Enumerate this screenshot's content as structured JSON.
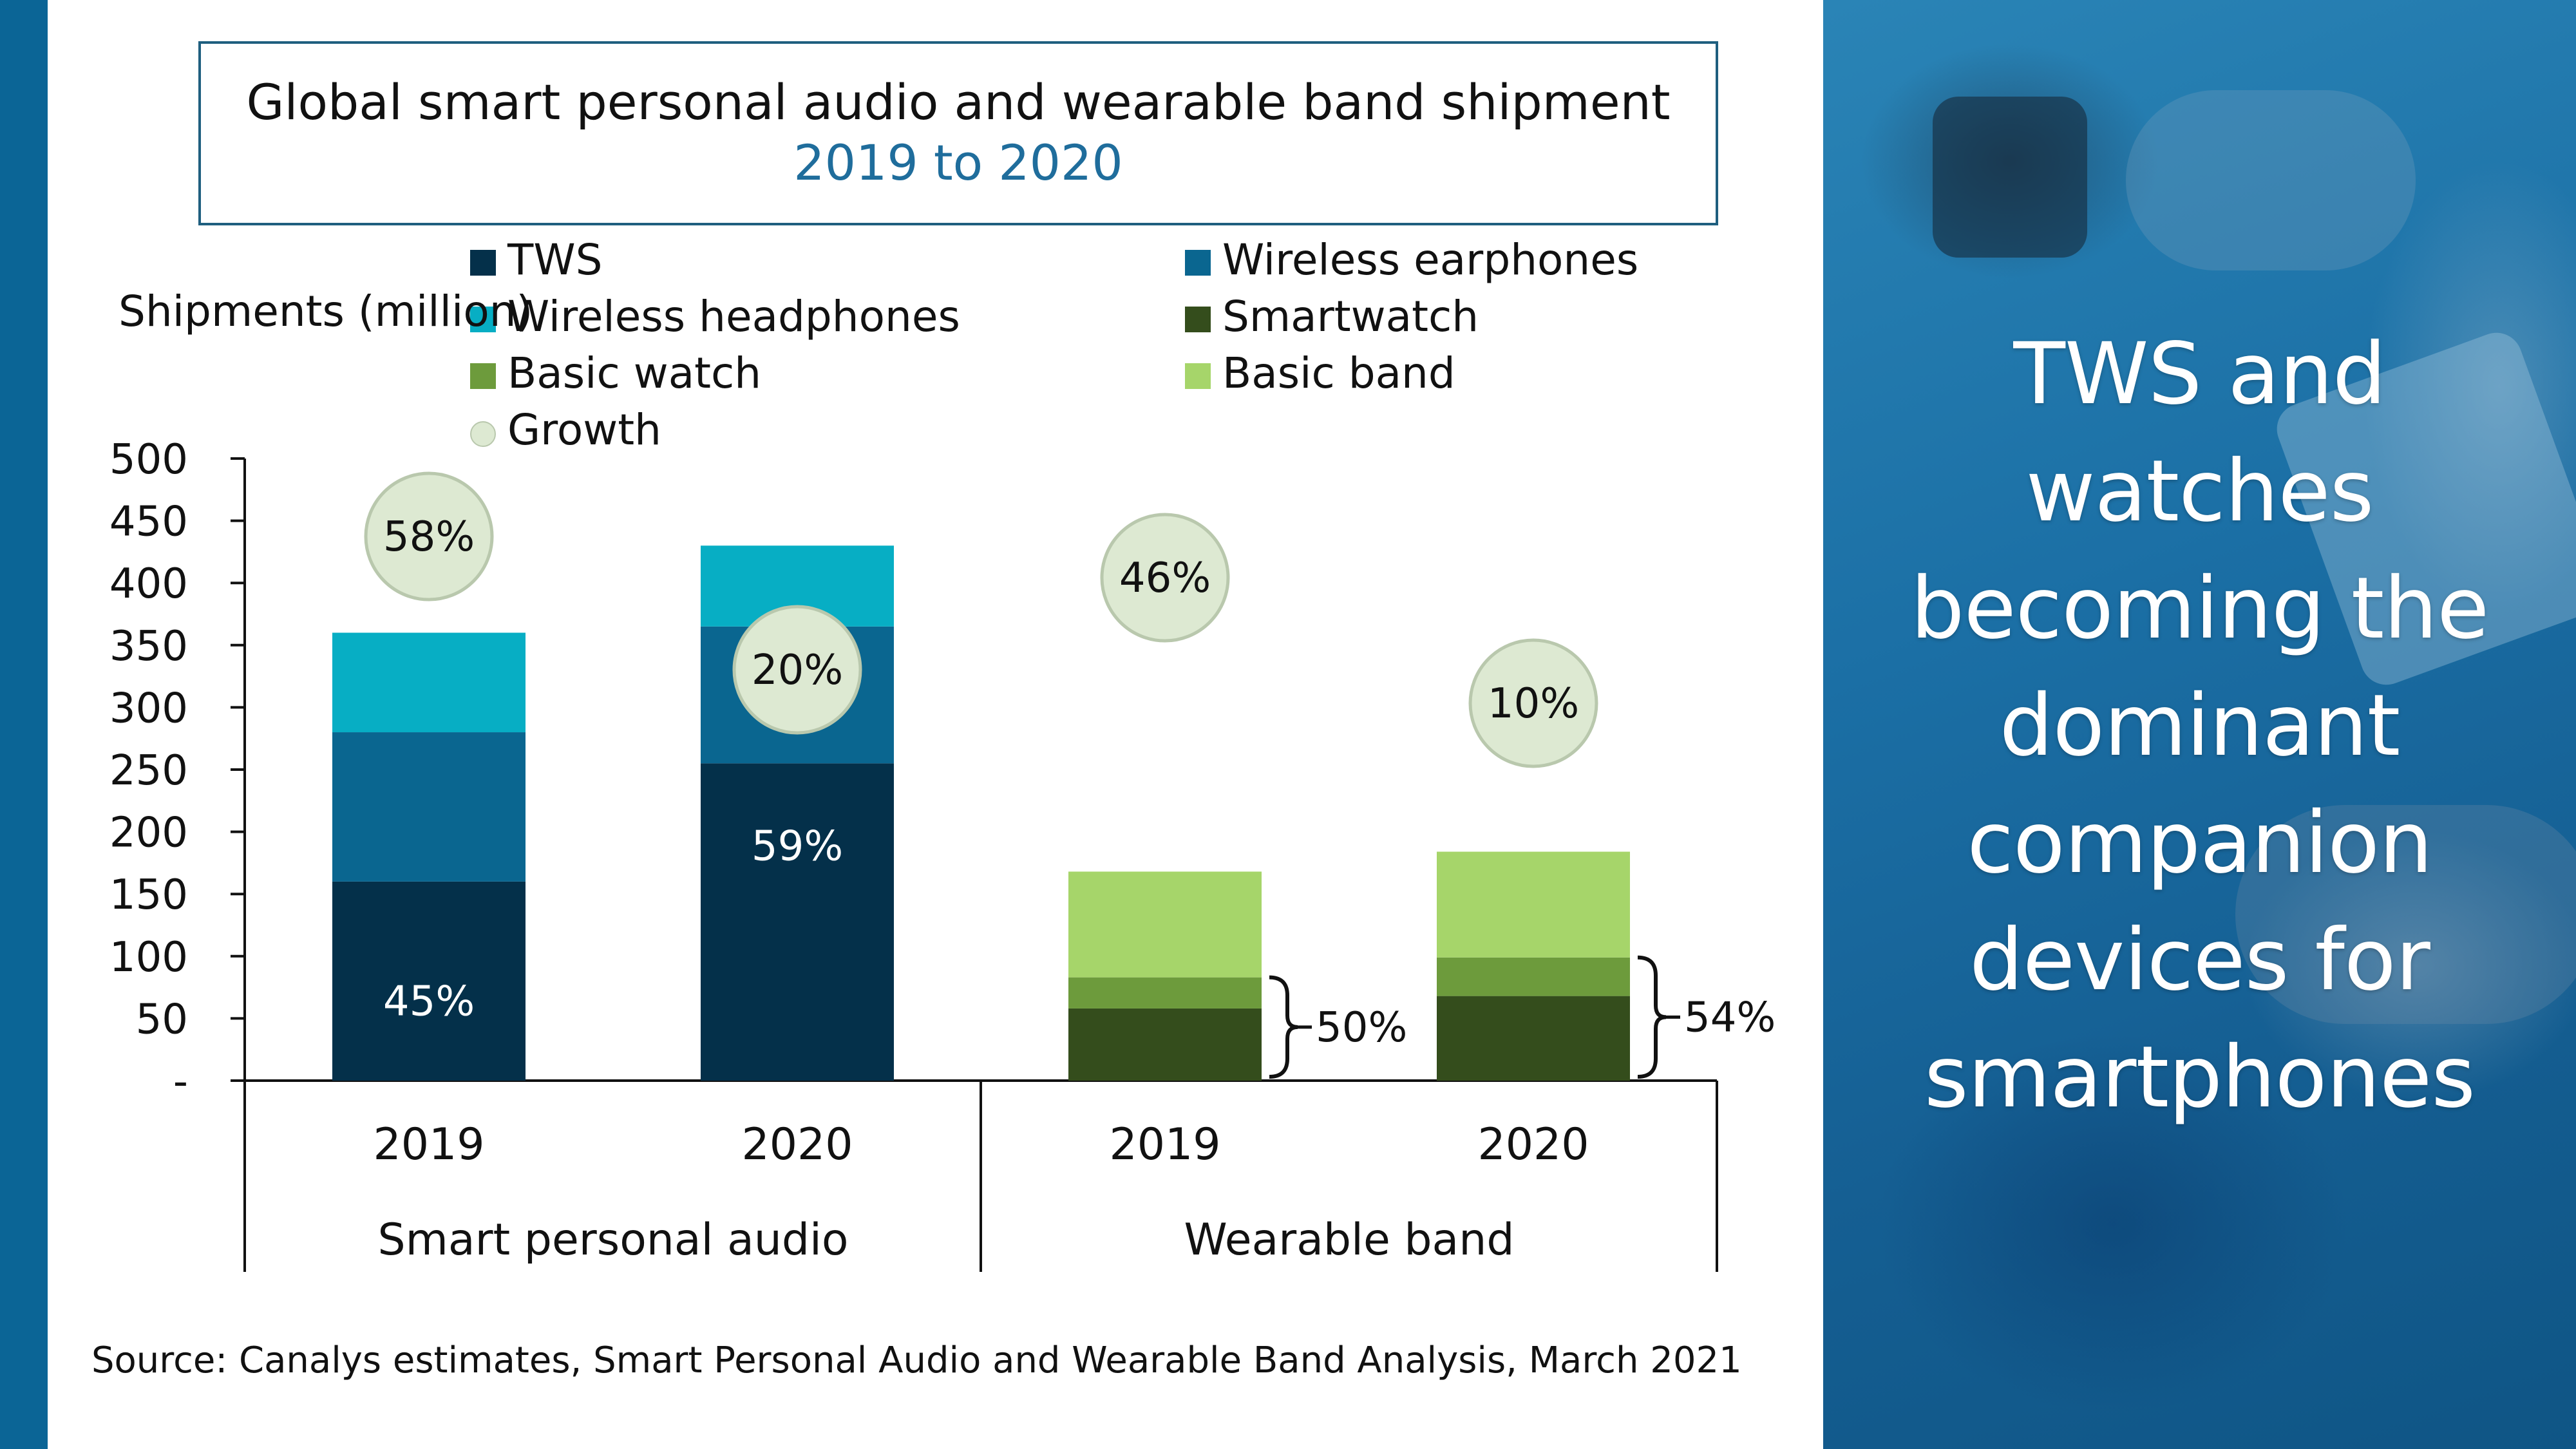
{
  "title": "Global smart personal audio and wearable band shipment",
  "subtitle": "2019 to 2020",
  "headline": [
    "TWS and",
    "watches",
    "becoming the",
    "dominant",
    "companion",
    "devices for",
    "smartphones"
  ],
  "source": "Source: Canalys estimates, Smart Personal Audio and Wearable Band Analysis, March 2021",
  "colors": {
    "TWS": "#04304a",
    "Wireless earphones": "#0a6690",
    "Wireless headphones": "#07aec4",
    "Smartwatch": "#344d1c",
    "Basic watch": "#6d9b3c",
    "Basic band": "#a6d56a",
    "Growth": "#dde9d2"
  },
  "legend": [
    {
      "label": "TWS",
      "color": "#04304a"
    },
    {
      "label": "Wireless earphones",
      "color": "#0a6690"
    },
    {
      "label": "Wireless headphones",
      "color": "#07aec4"
    },
    {
      "label": "Smartwatch",
      "color": "#344d1c"
    },
    {
      "label": "Basic watch",
      "color": "#6d9b3c"
    },
    {
      "label": "Basic band",
      "color": "#a6d56a"
    },
    {
      "label": "Growth",
      "color": "#dde9d2",
      "marker": "circle"
    }
  ],
  "chart_data": {
    "type": "bar",
    "stacked": true,
    "ylabel": "Shipments (million)",
    "ylim": [
      0,
      500
    ],
    "yticks": [
      "-",
      "50",
      "100",
      "150",
      "200",
      "250",
      "300",
      "350",
      "400",
      "450",
      "500"
    ],
    "groups": [
      {
        "name": "Smart personal audio",
        "bars": [
          {
            "x": "2019",
            "growth": "58%",
            "share_label": "45%",
            "segments": [
              {
                "series": "TWS",
                "value": 160
              },
              {
                "series": "Wireless earphones",
                "value": 120
              },
              {
                "series": "Wireless headphones",
                "value": 80
              }
            ]
          },
          {
            "x": "2020",
            "growth": "20%",
            "share_label": "59%",
            "segments": [
              {
                "series": "TWS",
                "value": 255
              },
              {
                "series": "Wireless earphones",
                "value": 110
              },
              {
                "series": "Wireless headphones",
                "value": 65
              }
            ]
          }
        ]
      },
      {
        "name": "Wearable band",
        "bars": [
          {
            "x": "2019",
            "growth": "46%",
            "bracket_label": "50%",
            "segments": [
              {
                "series": "Smartwatch",
                "value": 58
              },
              {
                "series": "Basic watch",
                "value": 25
              },
              {
                "series": "Basic band",
                "value": 85
              }
            ]
          },
          {
            "x": "2020",
            "growth": "10%",
            "bracket_label": "54%",
            "segments": [
              {
                "series": "Smartwatch",
                "value": 68
              },
              {
                "series": "Basic watch",
                "value": 31
              },
              {
                "series": "Basic band",
                "value": 85
              }
            ]
          }
        ]
      }
    ]
  }
}
